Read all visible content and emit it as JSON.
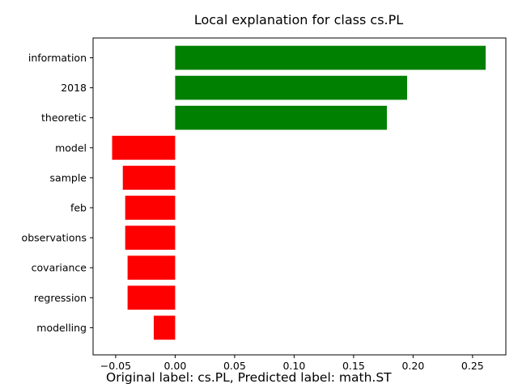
{
  "chart_data": {
    "type": "bar",
    "orientation": "horizontal",
    "title": "Local explanation for class cs.PL",
    "xlabel": "",
    "ylabel": "",
    "categories": [
      "information",
      "2018",
      "theoretic",
      "model",
      "sample",
      "feb",
      "observations",
      "covariance",
      "regression",
      "modelling"
    ],
    "values": [
      0.261,
      0.195,
      0.178,
      -0.053,
      -0.044,
      -0.042,
      -0.042,
      -0.04,
      -0.04,
      -0.018
    ],
    "xlim": [
      -0.069,
      0.278
    ],
    "xticks": [
      -0.05,
      0.0,
      0.05,
      0.1,
      0.15,
      0.2,
      0.25
    ],
    "xtick_labels": [
      "−0.05",
      "0.00",
      "0.05",
      "0.10",
      "0.15",
      "0.20",
      "0.25"
    ],
    "grid": false,
    "colors": {
      "positive": "#008000",
      "negative": "#ff0000"
    }
  },
  "caption": "Original label: cs.PL, Predicted label: math.ST"
}
